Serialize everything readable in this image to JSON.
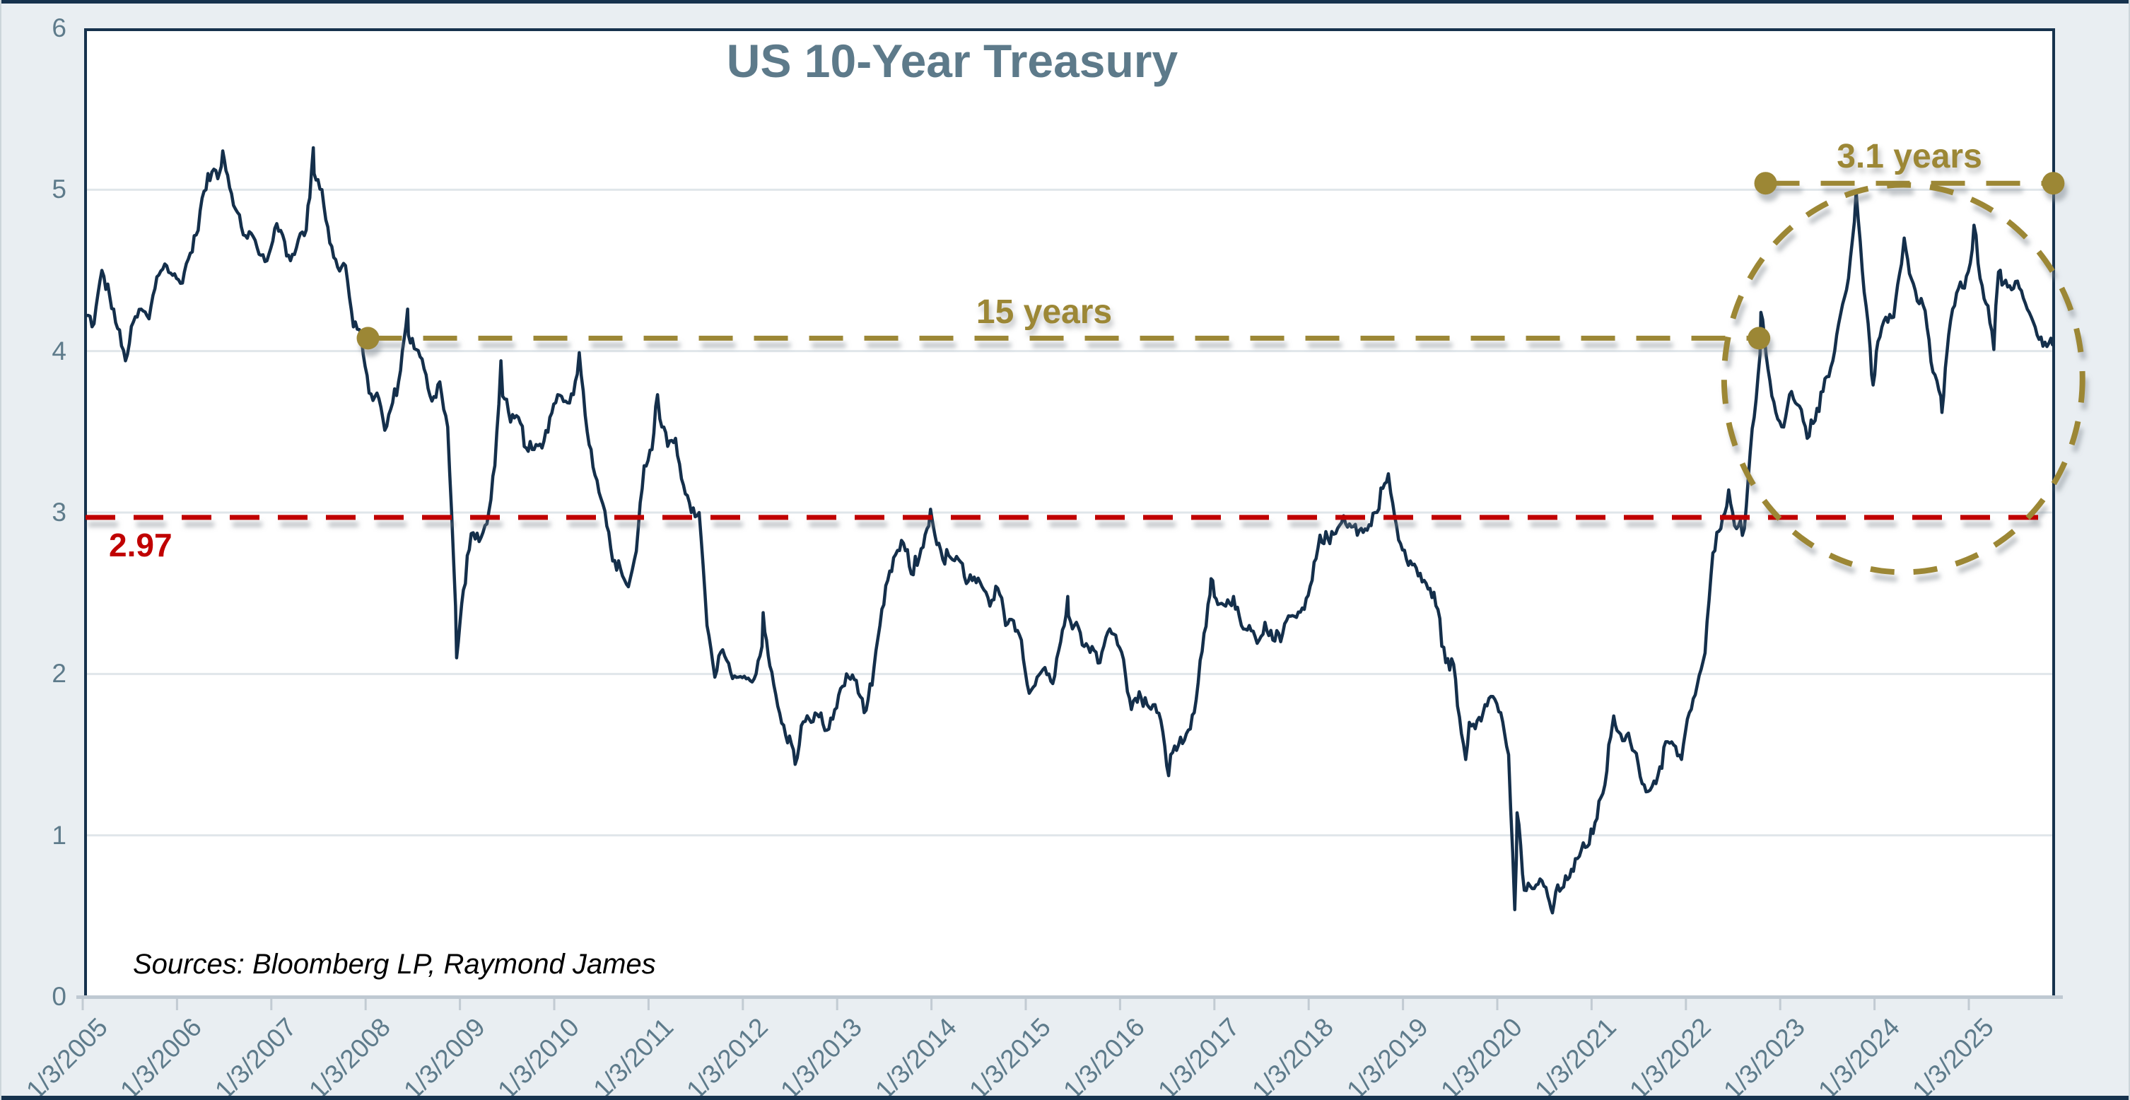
{
  "title": "US 10-Year Treasury",
  "source_note": "Sources: Bloomberg LP, Raymond James",
  "colors": {
    "series": "#142f4b",
    "plot_border": "#16324d",
    "axis_line": "#bfc9d2",
    "axis_tick": "#c2cbd3",
    "gridline": "#e0e6ea",
    "axis_labels": "#5e7b8b",
    "title": "#5d7a8a",
    "average_line": "#c00000",
    "annotation_gold": "#9c8735",
    "background": "#e9eef2",
    "plot_background": "#ffffff"
  },
  "chart_data": {
    "type": "line",
    "title": "US 10-Year Treasury",
    "xlabel": "",
    "ylabel": "",
    "ylim": [
      0,
      6
    ],
    "y_ticks": [
      6,
      5,
      4,
      3,
      2,
      1,
      0
    ],
    "grid": "horizontal-only",
    "legend": "none",
    "x_tick_labels": [
      "1/3/2005",
      "1/3/2006",
      "1/3/2007",
      "1/3/2008",
      "1/3/2009",
      "1/3/2010",
      "1/3/2011",
      "1/3/2012",
      "1/3/2013",
      "1/3/2014",
      "1/3/2015",
      "1/3/2016",
      "1/3/2017",
      "1/3/2018",
      "1/3/2019",
      "1/3/2020",
      "1/3/2021",
      "1/3/2022",
      "1/3/2023",
      "1/3/2024",
      "1/3/2025"
    ],
    "series": [
      {
        "name": "US 10-Year Treasury yield (%)",
        "frequency": "monthly averages (daily-noise rendering)",
        "monthly_values_by_year": {
          "2005": [
            4.22,
            4.17,
            4.5,
            4.34,
            4.14,
            3.94,
            4.18,
            4.26,
            4.2,
            4.46,
            4.54,
            4.47
          ],
          "2006": [
            4.42,
            4.57,
            4.72,
            4.99,
            5.11,
            5.11,
            5.09,
            4.88,
            4.72,
            4.73,
            4.6,
            4.56
          ],
          "2007": [
            4.76,
            4.72,
            4.56,
            4.69,
            4.75,
            5.1,
            5.0,
            4.67,
            4.52,
            4.53,
            4.15,
            4.1
          ],
          "2008": [
            3.74,
            3.74,
            3.51,
            3.68,
            3.88,
            4.1,
            4.01,
            3.89,
            3.69,
            3.81,
            3.53,
            2.42
          ],
          "2009": [
            2.52,
            2.87,
            2.82,
            2.93,
            3.29,
            3.72,
            3.56,
            3.59,
            3.4,
            3.39,
            3.4,
            3.59
          ],
          "2010": [
            3.73,
            3.69,
            3.73,
            3.85,
            3.42,
            3.2,
            3.01,
            2.7,
            2.65,
            2.54,
            2.76,
            3.29
          ],
          "2011": [
            3.39,
            3.58,
            3.41,
            3.46,
            3.17,
            3.0,
            3.0,
            2.3,
            1.98,
            2.15,
            2.01,
            1.98
          ],
          "2012": [
            1.97,
            1.97,
            2.17,
            2.05,
            1.8,
            1.62,
            1.53,
            1.68,
            1.72,
            1.75,
            1.65,
            1.72
          ],
          "2013": [
            1.91,
            1.98,
            1.96,
            1.76,
            1.93,
            2.3,
            2.58,
            2.74,
            2.81,
            2.62,
            2.72,
            2.9
          ],
          "2014": [
            2.86,
            2.71,
            2.72,
            2.71,
            2.56,
            2.6,
            2.54,
            2.42,
            2.53,
            2.3,
            2.33,
            2.21
          ],
          "2015": [
            1.88,
            1.98,
            2.04,
            1.94,
            2.2,
            2.36,
            2.32,
            2.17,
            2.17,
            2.07,
            2.26,
            2.24
          ],
          "2016": [
            2.09,
            1.78,
            1.89,
            1.81,
            1.81,
            1.64,
            1.5,
            1.56,
            1.63,
            1.76,
            2.14,
            2.49
          ],
          "2017": [
            2.43,
            2.42,
            2.48,
            2.3,
            2.3,
            2.19,
            2.32,
            2.21,
            2.2,
            2.36,
            2.35,
            2.4
          ],
          "2018": [
            2.58,
            2.86,
            2.84,
            2.87,
            2.98,
            2.91,
            2.89,
            2.89,
            3.0,
            3.15,
            3.12,
            2.83
          ],
          "2019": [
            2.71,
            2.68,
            2.57,
            2.53,
            2.4,
            2.07,
            2.06,
            1.63,
            1.7,
            1.71,
            1.81,
            1.86
          ],
          "2020": [
            1.76,
            1.5,
            0.87,
            0.66,
            0.67,
            0.73,
            0.62,
            0.65,
            0.68,
            0.79,
            0.87,
            0.93
          ],
          "2021": [
            1.08,
            1.26,
            1.61,
            1.64,
            1.62,
            1.52,
            1.32,
            1.28,
            1.37,
            1.58,
            1.56,
            1.47
          ],
          "2022": [
            1.76,
            1.93,
            2.13,
            2.75,
            2.9,
            3.14,
            2.9,
            2.9,
            3.52,
            3.98,
            3.89,
            3.62
          ],
          "2023": [
            3.53,
            3.75,
            3.66,
            3.46,
            3.57,
            3.75,
            3.9,
            4.17,
            4.38,
            4.8,
            4.5,
            4.02
          ],
          "2024": [
            4.06,
            4.21,
            4.21,
            4.54,
            4.48,
            4.31,
            4.25,
            3.87,
            3.72,
            4.1,
            4.36,
            4.39
          ],
          "2025": [
            4.63,
            4.45,
            4.28,
            4.28,
            4.42,
            4.38,
            4.39,
            4.26,
            4.15,
            4.03,
            4.08
          ]
        },
        "daily_extreme_points": [
          [
            2005.01,
            4.23
          ],
          [
            2006.49,
            5.24
          ],
          [
            2007.45,
            5.26
          ],
          [
            2008.45,
            4.26
          ],
          [
            2008.97,
            2.1
          ],
          [
            2009.44,
            3.94
          ],
          [
            2010.27,
            3.99
          ],
          [
            2011.1,
            3.73
          ],
          [
            2012.22,
            2.38
          ],
          [
            2012.56,
            1.44
          ],
          [
            2013.995,
            3.02
          ],
          [
            2015.45,
            2.48
          ],
          [
            2016.52,
            1.37
          ],
          [
            2016.97,
            2.59
          ],
          [
            2018.85,
            3.24
          ],
          [
            2019.67,
            1.47
          ],
          [
            2020.19,
            0.54
          ],
          [
            2020.215,
            1.14
          ],
          [
            2020.59,
            0.52
          ],
          [
            2021.24,
            1.74
          ],
          [
            2022.8,
            4.24
          ],
          [
            2023.81,
            4.99
          ],
          [
            2023.99,
            3.79
          ],
          [
            2024.32,
            4.7
          ],
          [
            2024.72,
            3.62
          ],
          [
            2025.06,
            4.78
          ],
          [
            2025.27,
            4.01
          ],
          [
            2025.32,
            4.49
          ],
          [
            2025.91,
            4.05
          ]
        ]
      }
    ],
    "annotations": {
      "average_line": {
        "label": "2.97",
        "value": 2.97
      },
      "span_15": {
        "label": "15 years",
        "y_value": 4.08,
        "x_start_year": 2008.03,
        "x_end_year": 2022.78
      },
      "span_31": {
        "label": "3.1 years",
        "y_value": 5.04,
        "x_start_year": 2022.85,
        "x_end_year": 2025.9
      },
      "ellipse": {
        "x_center_year": 2024.31,
        "y_center_value": 3.83,
        "x_radius_years": 1.9,
        "y_radius_value": 1.2
      }
    }
  }
}
